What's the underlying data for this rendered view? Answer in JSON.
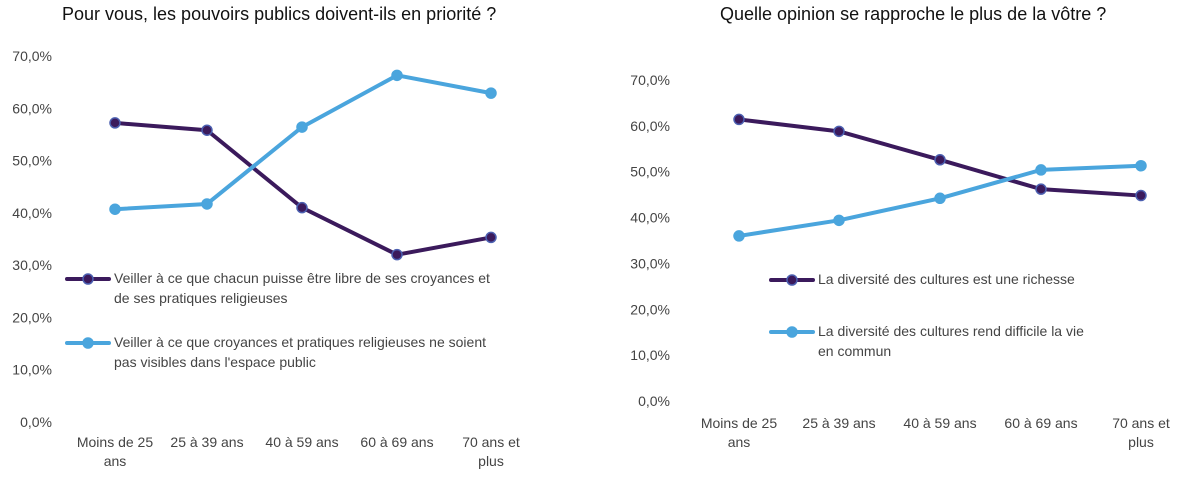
{
  "chart_data": [
    {
      "type": "line",
      "title": "Pour vous, les pouvoirs publics doivent-ils en priorité ?",
      "categories": [
        [
          "Moins de 25",
          "ans"
        ],
        [
          "25 à 39 ans"
        ],
        [
          "40 à 59 ans"
        ],
        [
          "60 à 69 ans"
        ],
        [
          "70 ans et",
          "plus"
        ]
      ],
      "ylim": [
        0,
        70
      ],
      "yticks": [
        "0,0%",
        "10,0%",
        "20,0%",
        "30,0%",
        "40,0%",
        "50,0%",
        "60,0%",
        "70,0%"
      ],
      "legend_position": "right",
      "series": [
        {
          "name": [
            "Veiller à ce que chacun puisse être libre de ses croyances et",
            "de ses pratiques religieuses"
          ],
          "color": "#3b1a5c",
          "values": [
            57.2,
            55.8,
            41.0,
            32.0,
            35.3
          ]
        },
        {
          "name": [
            "Veiller à ce que croyances et pratiques religieuses ne soient",
            "pas visibles dans l'espace public"
          ],
          "color": "#4aa5dd",
          "values": [
            40.7,
            41.7,
            56.4,
            66.3,
            62.9
          ]
        }
      ]
    },
    {
      "type": "line",
      "title": "Quelle opinion se rapproche le plus de la vôtre ?",
      "categories": [
        [
          "Moins de 25",
          "ans"
        ],
        [
          "25 à 39 ans"
        ],
        [
          "40 à 59 ans"
        ],
        [
          "60 à 69 ans"
        ],
        [
          "70 ans et",
          "plus"
        ]
      ],
      "ylim": [
        0,
        70
      ],
      "yticks": [
        "0,0%",
        "10,0%",
        "20,0%",
        "30,0%",
        "40,0%",
        "50,0%",
        "60,0%",
        "70,0%"
      ],
      "legend_position": "center-left",
      "series": [
        {
          "name": [
            "La diversité des cultures est une richesse"
          ],
          "color": "#3b1a5c",
          "values": [
            61.4,
            58.8,
            52.6,
            46.2,
            44.8
          ]
        },
        {
          "name": [
            "La diversité des cultures rend difficile la vie",
            "en commun"
          ],
          "color": "#4aa5dd",
          "values": [
            36.0,
            39.4,
            44.2,
            50.4,
            51.3
          ]
        }
      ]
    }
  ]
}
